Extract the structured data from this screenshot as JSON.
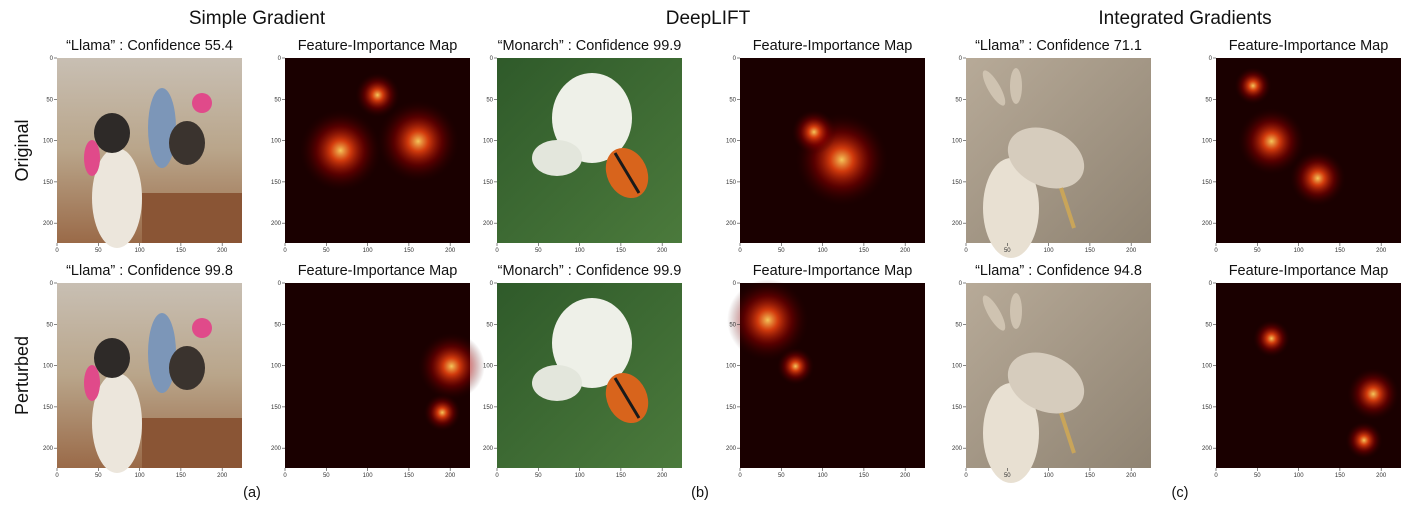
{
  "row_labels": [
    "Original",
    "Perturbed"
  ],
  "axis_ticks": [
    0,
    50,
    100,
    150,
    200
  ],
  "groups": [
    {
      "title": "Simple Gradient",
      "label": "(a)",
      "panels": [
        {
          "image_title": "“Llama” : Confidence 55.4",
          "map_title": "Feature-Importance Map"
        },
        {
          "image_title": "“Llama” : Confidence 99.8",
          "map_title": "Feature-Importance Map"
        }
      ]
    },
    {
      "title": "DeepLIFT",
      "label": "(b)",
      "panels": [
        {
          "image_title": "“Monarch” : Confidence 99.9",
          "map_title": "Feature-Importance Map"
        },
        {
          "image_title": "“Monarch” : Confidence 99.9",
          "map_title": "Feature-Importance Map"
        }
      ]
    },
    {
      "title": "Integrated Gradients",
      "label": "(c)",
      "panels": [
        {
          "image_title": "“Llama” : Confidence 71.1",
          "map_title": "Feature-Importance Map"
        },
        {
          "image_title": "“Llama” : Confidence 94.8",
          "map_title": "Feature-Importance Map"
        }
      ]
    }
  ]
}
